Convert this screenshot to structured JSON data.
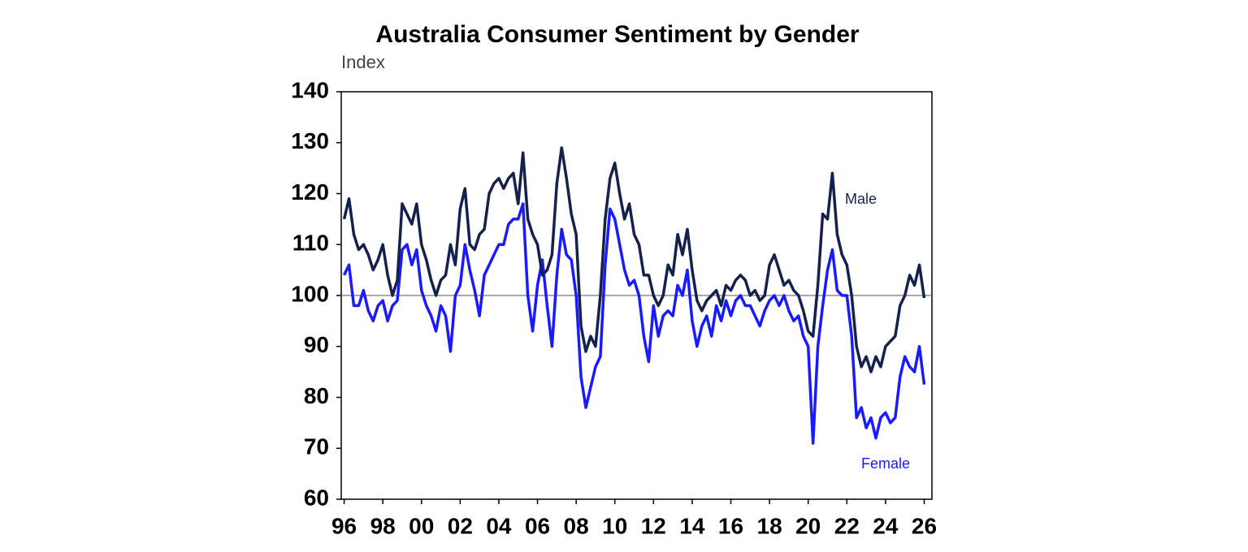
{
  "chart_data": {
    "type": "line",
    "title": "Australia Consumer Sentiment by Gender",
    "y_label": "Index",
    "x": [
      1996,
      1996.25,
      1996.5,
      1996.75,
      1997,
      1997.25,
      1997.5,
      1997.75,
      1998,
      1998.25,
      1998.5,
      1998.75,
      1999,
      1999.25,
      1999.5,
      1999.75,
      2000,
      2000.25,
      2000.5,
      2000.75,
      2001,
      2001.25,
      2001.5,
      2001.75,
      2002,
      2002.25,
      2002.5,
      2002.75,
      2003,
      2003.25,
      2003.5,
      2003.75,
      2004,
      2004.25,
      2004.5,
      2004.75,
      2005,
      2005.25,
      2005.5,
      2005.75,
      2006,
      2006.25,
      2006.5,
      2006.75,
      2007,
      2007.25,
      2007.5,
      2007.75,
      2008,
      2008.25,
      2008.5,
      2008.75,
      2009,
      2009.25,
      2009.5,
      2009.75,
      2010,
      2010.25,
      2010.5,
      2010.75,
      2011,
      2011.25,
      2011.5,
      2011.75,
      2012,
      2012.25,
      2012.5,
      2012.75,
      2013,
      2013.25,
      2013.5,
      2013.75,
      2014,
      2014.25,
      2014.5,
      2014.75,
      2015,
      2015.25,
      2015.5,
      2015.75,
      2016,
      2016.25,
      2016.5,
      2016.75,
      2017,
      2017.25,
      2017.5,
      2017.75,
      2018,
      2018.25,
      2018.5,
      2018.75,
      2019,
      2019.25,
      2019.5,
      2019.75,
      2020,
      2020.25,
      2020.5,
      2020.75,
      2021,
      2021.25,
      2021.5,
      2021.75,
      2022,
      2022.25,
      2022.5,
      2022.75,
      2023,
      2023.25,
      2023.5,
      2023.75,
      2024,
      2024.25,
      2024.5,
      2024.75,
      2025,
      2025.25,
      2025.5,
      2025.75,
      2026
    ],
    "series": [
      {
        "name": "Male",
        "color": "#14214d",
        "values": [
          115,
          119,
          112,
          109,
          110,
          108,
          105,
          107,
          110,
          104,
          100,
          103,
          118,
          116,
          114,
          118,
          110,
          107,
          103,
          100,
          103,
          104,
          110,
          106,
          117,
          121,
          110,
          109,
          112,
          113,
          120,
          122,
          123,
          121,
          123,
          124,
          118,
          128,
          115,
          112,
          110,
          104,
          105,
          108,
          122,
          129,
          123,
          116,
          112,
          94,
          89,
          92,
          90,
          100,
          115,
          123,
          126,
          120,
          115,
          118,
          112,
          110,
          104,
          104,
          100,
          98,
          100,
          106,
          104,
          112,
          108,
          113,
          105,
          99,
          97,
          99,
          100,
          101,
          98,
          102,
          101,
          103,
          104,
          103,
          100,
          101,
          99,
          100,
          106,
          108,
          105,
          102,
          103,
          101,
          100,
          97,
          93,
          92,
          102,
          116,
          115,
          124,
          112,
          108,
          106,
          100,
          90,
          86,
          88,
          85,
          88,
          86,
          90,
          91,
          92,
          98,
          100,
          104,
          102,
          106,
          99.5
        ]
      },
      {
        "name": "Female",
        "color": "#1a1aff",
        "values": [
          104,
          106,
          98,
          98,
          101,
          97,
          95,
          98,
          99,
          95,
          98,
          99,
          109,
          110,
          106,
          109,
          101,
          98,
          96,
          93,
          98,
          96,
          89,
          100,
          102,
          110,
          105,
          101,
          96,
          104,
          106,
          108,
          110,
          110,
          114,
          115,
          115,
          118,
          100,
          93,
          102,
          107,
          98,
          90,
          104,
          113,
          108,
          107,
          100,
          84,
          78,
          82,
          86,
          88,
          106,
          117,
          115,
          110,
          105,
          102,
          103,
          100,
          92,
          87,
          98,
          92,
          96,
          97,
          96,
          102,
          100,
          105,
          95,
          90,
          94,
          96,
          92,
          98,
          95,
          99,
          96,
          99,
          100,
          98,
          98,
          96,
          94,
          97,
          99,
          100,
          98,
          100,
          97,
          95,
          96,
          92,
          90,
          71,
          90,
          98,
          105,
          109,
          101,
          100,
          100,
          92,
          76,
          78,
          74,
          76,
          72,
          76,
          77,
          75,
          76,
          84,
          88,
          86,
          85,
          90,
          82.5
        ]
      }
    ],
    "xlim": [
      1995.85,
      2026.4
    ],
    "ylim": [
      60,
      140
    ],
    "xticks": [
      {
        "value": 1996,
        "label": "96"
      },
      {
        "value": 1998,
        "label": "98"
      },
      {
        "value": 2000,
        "label": "00"
      },
      {
        "value": 2002,
        "label": "02"
      },
      {
        "value": 2004,
        "label": "04"
      },
      {
        "value": 2006,
        "label": "06"
      },
      {
        "value": 2008,
        "label": "08"
      },
      {
        "value": 2010,
        "label": "10"
      },
      {
        "value": 2012,
        "label": "12"
      },
      {
        "value": 2014,
        "label": "14"
      },
      {
        "value": 2016,
        "label": "16"
      },
      {
        "value": 2018,
        "label": "18"
      },
      {
        "value": 2020,
        "label": "20"
      },
      {
        "value": 2022,
        "label": "22"
      },
      {
        "value": 2024,
        "label": "24"
      },
      {
        "value": 2026,
        "label": "26"
      }
    ],
    "yticks": [
      60,
      70,
      80,
      90,
      100,
      110,
      120,
      130,
      140
    ],
    "reference_line": 100,
    "grid": false
  }
}
